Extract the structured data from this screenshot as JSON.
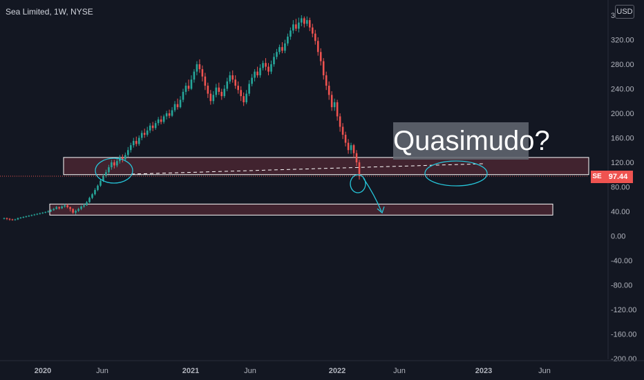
{
  "header": {
    "title": "Sea Limited, 1W, NYSE",
    "currency": "USD"
  },
  "annotation": {
    "text": "Quasimudo?"
  },
  "price_marker": {
    "symbol": "SE",
    "value": "97.44"
  },
  "colors": {
    "up": "#26a69a",
    "down": "#ef5350",
    "zone_fill": "#4a2631",
    "zone_border": "#ffffff",
    "drawing": "#26c6da"
  },
  "chart_data": {
    "type": "candlestick",
    "x_axis": {
      "ticks": [
        "2020",
        "Jun",
        "2021",
        "Jun",
        "2022",
        "Jun",
        "2023",
        "Jun"
      ]
    },
    "y_axis": {
      "min": -200,
      "max": 360,
      "ticks": [
        "360.00",
        "320.00",
        "280.00",
        "240.00",
        "200.00",
        "160.00",
        "120.00",
        "80.00",
        "40.00",
        "0.00",
        "-40.00",
        "-80.00",
        "-120.00",
        "-160.00",
        "-200.00"
      ]
    },
    "last_price": 97.44,
    "zones": [
      {
        "low": 100,
        "high": 128
      },
      {
        "low": 34,
        "high": 52
      }
    ],
    "candles": [
      [
        28,
        29,
        30,
        27
      ],
      [
        29,
        28,
        30,
        26
      ],
      [
        28,
        27,
        29,
        25
      ],
      [
        27,
        26,
        28,
        25
      ],
      [
        26,
        27,
        28,
        25
      ],
      [
        27,
        29,
        30,
        26
      ],
      [
        29,
        30,
        31,
        28
      ],
      [
        30,
        31,
        32,
        29
      ],
      [
        31,
        32,
        33,
        30
      ],
      [
        32,
        33,
        34,
        31
      ],
      [
        33,
        34,
        35,
        32
      ],
      [
        34,
        35,
        36,
        33
      ],
      [
        35,
        36,
        37,
        34
      ],
      [
        36,
        37,
        38,
        35
      ],
      [
        37,
        38,
        39,
        36
      ],
      [
        38,
        39,
        40,
        37
      ],
      [
        39,
        40,
        42,
        38
      ],
      [
        40,
        42,
        44,
        39
      ],
      [
        42,
        44,
        46,
        41
      ],
      [
        44,
        47,
        49,
        43
      ],
      [
        47,
        45,
        48,
        43
      ],
      [
        45,
        48,
        50,
        44
      ],
      [
        48,
        50,
        52,
        46
      ],
      [
        50,
        47,
        52,
        45
      ],
      [
        47,
        44,
        48,
        40
      ],
      [
        44,
        38,
        45,
        36
      ],
      [
        38,
        41,
        43,
        35
      ],
      [
        41,
        44,
        46,
        39
      ],
      [
        44,
        48,
        50,
        42
      ],
      [
        48,
        50,
        53,
        46
      ],
      [
        50,
        55,
        57,
        49
      ],
      [
        55,
        62,
        64,
        54
      ],
      [
        62,
        68,
        70,
        60
      ],
      [
        68,
        75,
        78,
        66
      ],
      [
        75,
        82,
        84,
        73
      ],
      [
        82,
        90,
        93,
        80
      ],
      [
        90,
        98,
        101,
        88
      ],
      [
        98,
        104,
        108,
        95
      ],
      [
        104,
        112,
        116,
        101
      ],
      [
        112,
        120,
        124,
        108
      ],
      [
        120,
        115,
        124,
        110
      ],
      [
        115,
        122,
        126,
        112
      ],
      [
        122,
        128,
        132,
        118
      ],
      [
        128,
        125,
        133,
        120
      ],
      [
        125,
        132,
        136,
        122
      ],
      [
        132,
        140,
        145,
        129
      ],
      [
        140,
        148,
        152,
        136
      ],
      [
        148,
        155,
        160,
        144
      ],
      [
        155,
        150,
        162,
        146
      ],
      [
        150,
        160,
        164,
        147
      ],
      [
        160,
        168,
        172,
        156
      ],
      [
        168,
        165,
        175,
        160
      ],
      [
        165,
        172,
        178,
        162
      ],
      [
        172,
        180,
        184,
        168
      ],
      [
        180,
        176,
        186,
        171
      ],
      [
        176,
        184,
        188,
        173
      ],
      [
        184,
        190,
        194,
        180
      ],
      [
        190,
        186,
        196,
        182
      ],
      [
        186,
        195,
        198,
        183
      ],
      [
        195,
        200,
        204,
        190
      ],
      [
        200,
        196,
        206,
        192
      ],
      [
        196,
        205,
        210,
        194
      ],
      [
        205,
        215,
        220,
        202
      ],
      [
        215,
        210,
        224,
        206
      ],
      [
        210,
        222,
        228,
        208
      ],
      [
        222,
        235,
        240,
        218
      ],
      [
        235,
        245,
        250,
        230
      ],
      [
        245,
        240,
        255,
        236
      ],
      [
        240,
        255,
        262,
        238
      ],
      [
        255,
        268,
        272,
        250
      ],
      [
        268,
        280,
        285,
        262
      ],
      [
        280,
        272,
        288,
        266
      ],
      [
        272,
        260,
        278,
        252
      ],
      [
        260,
        245,
        266,
        238
      ],
      [
        245,
        232,
        250,
        225
      ],
      [
        232,
        220,
        238,
        214
      ],
      [
        220,
        230,
        236,
        215
      ],
      [
        230,
        242,
        248,
        226
      ],
      [
        242,
        235,
        250,
        230
      ],
      [
        235,
        228,
        240,
        222
      ],
      [
        228,
        240,
        246,
        225
      ],
      [
        240,
        252,
        258,
        236
      ],
      [
        252,
        262,
        268,
        248
      ],
      [
        262,
        255,
        270,
        250
      ],
      [
        255,
        245,
        262,
        240
      ],
      [
        245,
        238,
        252,
        232
      ],
      [
        238,
        228,
        244,
        220
      ],
      [
        228,
        218,
        234,
        212
      ],
      [
        218,
        232,
        238,
        215
      ],
      [
        232,
        248,
        254,
        228
      ],
      [
        248,
        258,
        264,
        244
      ],
      [
        258,
        268,
        272,
        252
      ],
      [
        268,
        262,
        276,
        258
      ],
      [
        262,
        274,
        280,
        258
      ],
      [
        274,
        282,
        286,
        270
      ],
      [
        282,
        276,
        290,
        270
      ],
      [
        276,
        268,
        282,
        262
      ],
      [
        268,
        280,
        286,
        264
      ],
      [
        280,
        292,
        298,
        276
      ],
      [
        292,
        300,
        305,
        288
      ],
      [
        300,
        308,
        312,
        296
      ],
      [
        308,
        302,
        316,
        298
      ],
      [
        302,
        314,
        320,
        298
      ],
      [
        314,
        325,
        330,
        310
      ],
      [
        325,
        335,
        340,
        320
      ],
      [
        335,
        345,
        352,
        330
      ],
      [
        345,
        338,
        354,
        334
      ],
      [
        338,
        348,
        356,
        332
      ],
      [
        348,
        355,
        360,
        342
      ],
      [
        355,
        346,
        358,
        340
      ],
      [
        346,
        352,
        358,
        342
      ],
      [
        352,
        340,
        356,
        334
      ],
      [
        340,
        330,
        346,
        324
      ],
      [
        330,
        318,
        336,
        312
      ],
      [
        318,
        300,
        324,
        294
      ],
      [
        300,
        285,
        306,
        278
      ],
      [
        285,
        262,
        290,
        255
      ],
      [
        262,
        245,
        268,
        238
      ],
      [
        245,
        230,
        252,
        222
      ],
      [
        230,
        210,
        236,
        204
      ],
      [
        210,
        218,
        224,
        204
      ],
      [
        218,
        195,
        222,
        188
      ],
      [
        195,
        178,
        200,
        170
      ],
      [
        178,
        165,
        184,
        158
      ],
      [
        165,
        152,
        170,
        146
      ],
      [
        152,
        140,
        158,
        134
      ],
      [
        140,
        148,
        152,
        134
      ],
      [
        148,
        135,
        150,
        128
      ],
      [
        135,
        120,
        140,
        114
      ],
      [
        120,
        97.44,
        124,
        92
      ]
    ]
  }
}
